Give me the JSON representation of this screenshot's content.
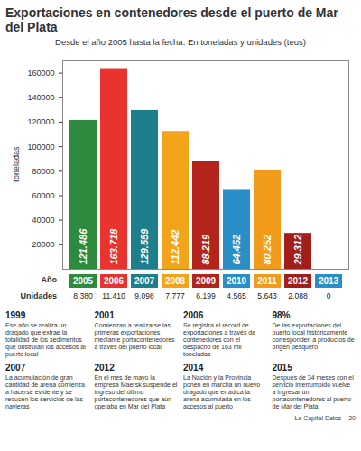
{
  "chart_data": {
    "type": "bar",
    "title": "Exportaciones en contenedores desde el puerto de Mar del Plata",
    "subtitle": "Desde el año 2005 hasta la fecha. En toneladas y unidades (teus)",
    "y_label": "Toneladas",
    "x_label": "Año",
    "categories": [
      "2005",
      "2006",
      "2007",
      "2008",
      "2009",
      "2010",
      "2011",
      "2012",
      "2013"
    ],
    "values": [
      121486,
      163718,
      129559,
      112442,
      88219,
      64452,
      80252,
      29312,
      0
    ],
    "value_labels": [
      "121.486",
      "163.718",
      "129.559",
      "112.442",
      "88.219",
      "64.452",
      "80.252",
      "29.312",
      null
    ],
    "colors": [
      "#2e8b3e",
      "#e8332f",
      "#1d7f8c",
      "#f2a51a",
      "#b3241c",
      "#2b8fc7",
      "#f29a1a",
      "#a21e1a",
      "#2b8fc7"
    ],
    "ylim": [
      0,
      170000
    ],
    "yticks": [
      20000,
      40000,
      60000,
      80000,
      100000,
      120000,
      140000,
      160000
    ],
    "grid": false,
    "data_labels": true,
    "units": {
      "label": "Unidades",
      "values": [
        8380,
        11410,
        9098,
        7777,
        6199,
        4565,
        5643,
        2088,
        0
      ],
      "value_labels": [
        "8.380",
        "11.410",
        "9.098",
        "7.777",
        "6.199",
        "4.565",
        "5.643",
        "2.088",
        "0"
      ]
    }
  },
  "timeline": [
    {
      "heading": "1999",
      "text": "Ese año se realiza un dragado que extrae la totalidad de los sedimentos que obstruían los accesos al puerto local"
    },
    {
      "heading": "2001",
      "text": "Comienzan a realizarse las primeras exportaciones mediante portacontenedores a través del puerto local"
    },
    {
      "heading": "2006",
      "text": "Se registra el récord de exportaciones a través de contenedores con el despacho de 163 mil toneladas"
    },
    {
      "heading": "98%",
      "text": "De las exportaciones del puerto local históricamente corresponden a productos de origen pesquero"
    },
    {
      "heading": "2007",
      "text": "La acumulación de gran cantidad de arena comienza a hacerse evidente y se reducen los servicios de las navieras"
    },
    {
      "heading": "2012",
      "text": "En el mes de mayo la empresa Maersk suspende el ingreso del último portacontenedores que aún operaba en Mar del Plata"
    },
    {
      "heading": "2014",
      "text": "La Nación y la Provincia ponen en marcha un nuevo dragado que erradica la arena acumulada en los accesos al puerto"
    },
    {
      "heading": "2015",
      "text": "Después de 34 meses con el servicio interrumpido vuelve a ingresar un portacontenedores al puerto de Mar del Plata"
    }
  ],
  "footer": {
    "source": "La Capital Datos",
    "page": "20"
  }
}
